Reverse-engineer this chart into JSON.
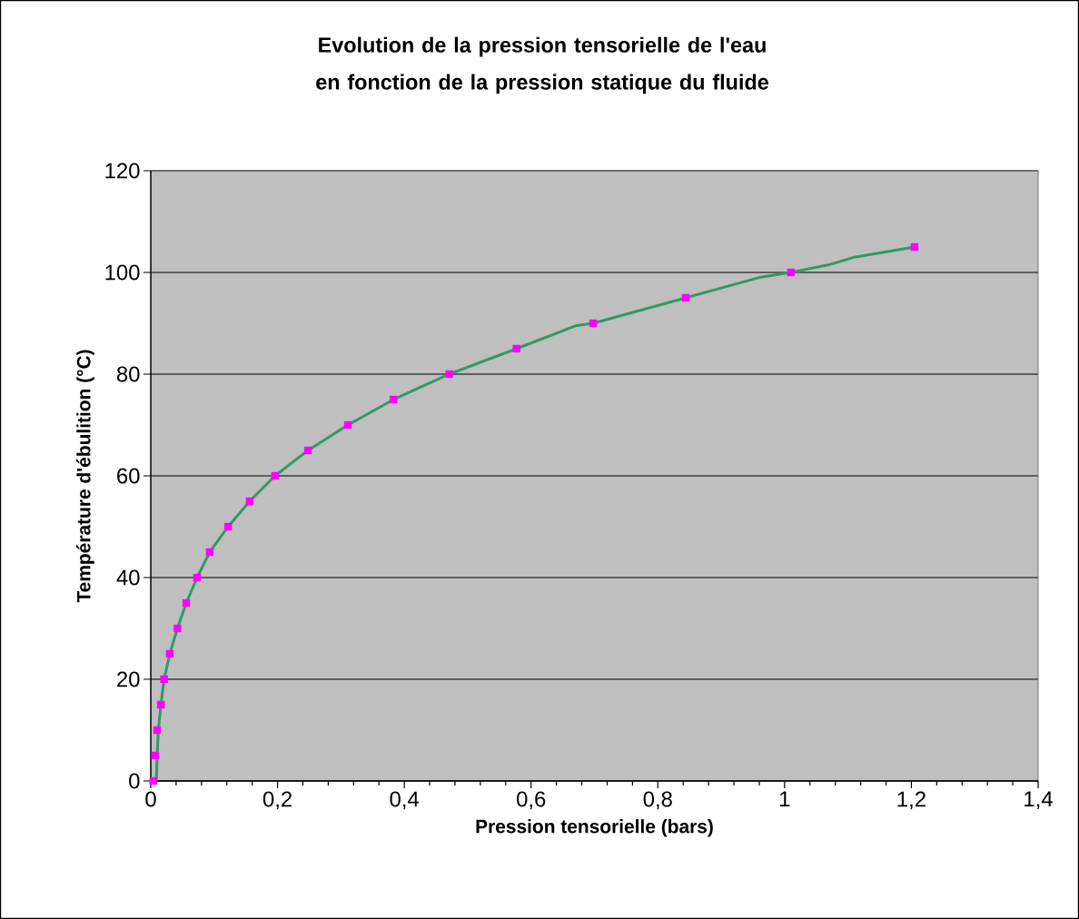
{
  "chart_data": {
    "type": "scatter",
    "title": "Evolution de la pression tensorielle de l'eau en fonction de la pression statique du fluide",
    "xlabel": "Pression tensorielle (bars)",
    "ylabel": "Température d'ébulition (°C)",
    "xlim": [
      0,
      1.4
    ],
    "ylim": [
      0,
      120
    ],
    "xticks": [
      0,
      {
        "value": 0.04,
        "label": null
      },
      {
        "value": 0.08,
        "label": null
      },
      {
        "value": 0.12,
        "label": null
      },
      {
        "value": 0.16,
        "label": null
      },
      {
        "value": 0.2,
        "label": "0,2"
      },
      {
        "value": 0.24,
        "label": null
      },
      {
        "value": 0.28,
        "label": null
      },
      {
        "value": 0.32,
        "label": null
      },
      {
        "value": 0.36,
        "label": null
      },
      {
        "value": 0.4,
        "label": "0,4"
      },
      {
        "value": 0.44,
        "label": null
      },
      {
        "value": 0.48,
        "label": null
      },
      {
        "value": 0.52,
        "label": null
      },
      {
        "value": 0.56,
        "label": null
      },
      {
        "value": 0.6,
        "label": "0,6"
      },
      {
        "value": 0.64,
        "label": null
      },
      {
        "value": 0.68,
        "label": null
      },
      {
        "value": 0.72,
        "label": null
      },
      {
        "value": 0.76,
        "label": null
      },
      {
        "value": 0.8,
        "label": "0,8"
      },
      {
        "value": 0.84,
        "label": null
      },
      {
        "value": 0.88,
        "label": null
      },
      {
        "value": 0.92,
        "label": null
      },
      {
        "value": 0.96,
        "label": null
      },
      1,
      {
        "value": 1.04,
        "label": null
      },
      {
        "value": 1.08,
        "label": null
      },
      {
        "value": 1.12,
        "label": null
      },
      {
        "value": 1.16,
        "label": null
      },
      {
        "value": 1.2,
        "label": "1,2"
      },
      {
        "value": 1.24,
        "label": null
      },
      {
        "value": 1.28,
        "label": null
      },
      {
        "value": 1.32,
        "label": null
      },
      {
        "value": 1.36,
        "label": null
      },
      {
        "value": 1.4,
        "label": "1,4"
      }
    ],
    "yticks": [
      0,
      20,
      40,
      60,
      80,
      100,
      120
    ],
    "grid": "y",
    "series": [
      {
        "type": "line",
        "color": "#339966",
        "marker": "none",
        "x": [
          0.009,
          0.01,
          0.012,
          0.016,
          0.021,
          0.03,
          0.042,
          0.056,
          0.073,
          0.093,
          0.122,
          0.156,
          0.196,
          0.248,
          0.311,
          0.383,
          0.471,
          0.577,
          0.67,
          0.698,
          0.844,
          0.96,
          1.01,
          1.07,
          1.11,
          1.205
        ],
        "values": [
          0,
          5,
          10,
          15,
          20,
          25,
          30,
          35,
          40,
          45,
          50,
          55,
          60,
          65,
          70,
          75,
          80,
          85,
          89.5,
          90,
          95,
          99,
          100,
          101.5,
          103,
          105
        ]
      },
      {
        "color": "#ff00ff",
        "marker": "square",
        "x": [
          0.004,
          0.007,
          0.01,
          0.016,
          0.021,
          0.03,
          0.042,
          0.056,
          0.073,
          0.093,
          0.122,
          0.156,
          0.196,
          0.248,
          0.311,
          0.383,
          0.471,
          0.577,
          0.698,
          0.844,
          1.01,
          1.205
        ],
        "values": [
          0,
          5,
          10,
          15,
          20,
          25,
          30,
          35,
          40,
          45,
          50,
          55,
          60,
          65,
          70,
          75,
          80,
          85,
          90,
          95,
          100,
          105
        ]
      }
    ]
  }
}
